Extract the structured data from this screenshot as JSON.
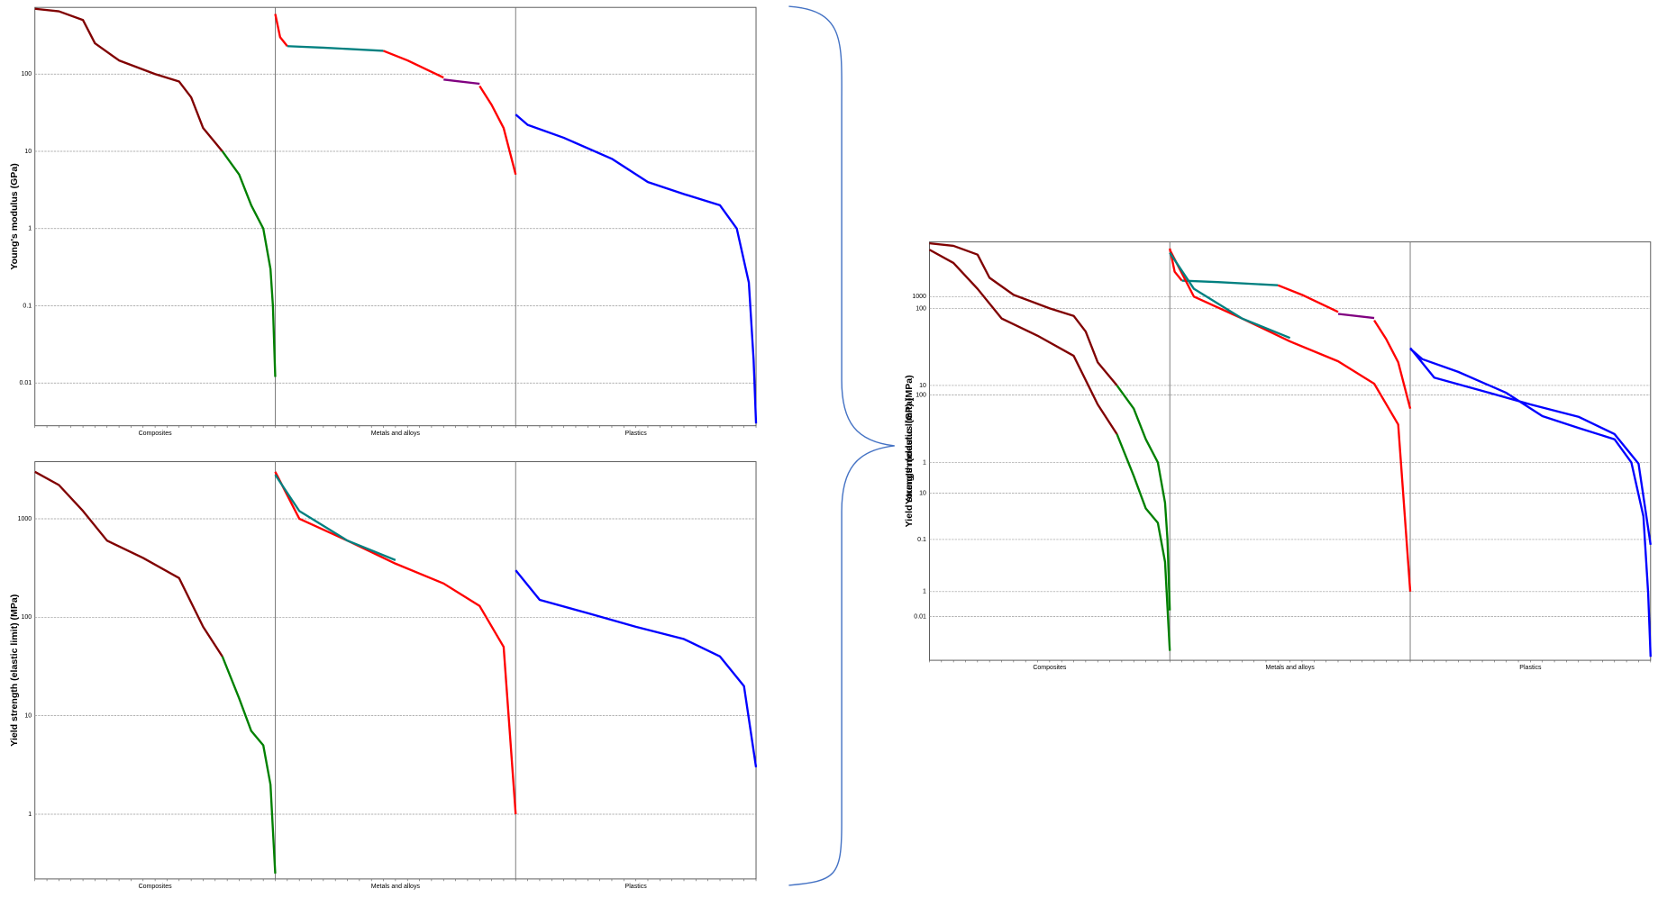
{
  "chart_data": [
    {
      "type": "line",
      "log_y": true,
      "grid": true,
      "y_label": "Young's modulus (GPa)",
      "categories": [
        "Composites",
        "Metals and alloys",
        "Plastics"
      ],
      "xlim": [
        0,
        3
      ],
      "ylim": [
        0.0028,
        730
      ],
      "yticks": [
        0.01,
        0.1,
        1,
        10,
        100
      ],
      "series": [
        {
          "color": "#800000",
          "x": [
            0,
            0.1,
            0.2,
            0.25,
            0.35,
            0.5,
            0.6,
            0.65,
            0.7,
            0.78
          ],
          "values": [
            700,
            650,
            500,
            250,
            150,
            100,
            80,
            50,
            20,
            10
          ]
        },
        {
          "color": "#008000",
          "x": [
            0.78,
            0.85,
            0.9,
            0.95,
            0.98,
            0.99,
            1.0
          ],
          "values": [
            10,
            5,
            2,
            1,
            0.3,
            0.1,
            0.012
          ]
        },
        {
          "color": "#ff0000",
          "x": [
            1.0,
            1.02,
            1.05
          ],
          "values": [
            600,
            300,
            230
          ]
        },
        {
          "color": "#008080",
          "x": [
            1.05,
            1.2,
            1.45
          ],
          "values": [
            230,
            220,
            200
          ]
        },
        {
          "color": "#ff0000",
          "x": [
            1.45,
            1.55,
            1.7
          ],
          "values": [
            200,
            150,
            90
          ]
        },
        {
          "color": "#800080",
          "x": [
            1.7,
            1.85
          ],
          "values": [
            85,
            75
          ]
        },
        {
          "color": "#ff0000",
          "x": [
            1.85,
            1.9,
            1.95,
            2.0
          ],
          "values": [
            70,
            40,
            20,
            5
          ]
        },
        {
          "color": "#0000ff",
          "x": [
            2.0,
            2.05,
            2.2,
            2.4,
            2.55,
            2.7,
            2.85,
            2.92,
            2.97,
            2.99,
            3.0
          ],
          "values": [
            30,
            22,
            15,
            8,
            4,
            2.8,
            2,
            1,
            0.2,
            0.02,
            0.003
          ]
        }
      ]
    },
    {
      "type": "line",
      "log_y": true,
      "grid": true,
      "y_label": "Yield strength (elastic limit) (MPa)",
      "categories": [
        "Composites",
        "Metals and alloys",
        "Plastics"
      ],
      "xlim": [
        0,
        3
      ],
      "ylim": [
        0.22,
        3800
      ],
      "yticks": [
        1,
        10,
        100,
        1000
      ],
      "series": [
        {
          "color": "#800000",
          "x": [
            0,
            0.1,
            0.2,
            0.3,
            0.45,
            0.6,
            0.7,
            0.78
          ],
          "values": [
            3000,
            2200,
            1200,
            600,
            400,
            250,
            80,
            40
          ]
        },
        {
          "color": "#008000",
          "x": [
            0.78,
            0.85,
            0.9,
            0.95,
            0.98,
            1.0
          ],
          "values": [
            40,
            15,
            7,
            5,
            2,
            0.25
          ]
        },
        {
          "color": "#ff0000",
          "x": [
            1.0,
            1.1,
            1.3,
            1.5,
            1.7,
            1.85,
            1.95,
            2.0
          ],
          "values": [
            3000,
            1000,
            600,
            350,
            220,
            130,
            50,
            1
          ]
        },
        {
          "color": "#008080",
          "x": [
            1.0,
            1.1,
            1.3,
            1.5
          ],
          "values": [
            2800,
            1200,
            600,
            380
          ]
        },
        {
          "color": "#0000ff",
          "x": [
            2.0,
            2.1,
            2.3,
            2.5,
            2.7,
            2.85,
            2.95,
            3.0
          ],
          "values": [
            300,
            150,
            110,
            80,
            60,
            40,
            20,
            3
          ]
        }
      ]
    },
    {
      "type": "line",
      "log_y": true,
      "grid": true,
      "y_label": "Young's modulus (GPa)",
      "y2_label": "Yield strength (elastic limit) (MPa)",
      "categories": [
        "Composites",
        "Metals and alloys",
        "Plastics"
      ],
      "xlim": [
        0,
        3
      ],
      "ylim": [
        0.0027,
        730
      ],
      "yticks": [
        0.01,
        0.1,
        1,
        10,
        100
      ],
      "y2lim": [
        0.2,
        3600
      ],
      "y2ticks": [
        1,
        10,
        100,
        1000
      ],
      "series": [
        {
          "color": "#800000",
          "x": [
            0,
            0.1,
            0.2,
            0.25,
            0.35,
            0.5,
            0.6,
            0.65,
            0.7,
            0.78
          ],
          "values": [
            700,
            650,
            500,
            250,
            150,
            100,
            80,
            50,
            20,
            10
          ]
        },
        {
          "color": "#008000",
          "x": [
            0.78,
            0.85,
            0.9,
            0.95,
            0.98,
            0.99,
            1.0
          ],
          "values": [
            10,
            5,
            2,
            1,
            0.3,
            0.1,
            0.012
          ]
        },
        {
          "color": "#ff0000",
          "x": [
            1.0,
            1.02,
            1.05
          ],
          "values": [
            600,
            300,
            230
          ]
        },
        {
          "color": "#008080",
          "x": [
            1.05,
            1.2,
            1.45
          ],
          "values": [
            230,
            220,
            200
          ]
        },
        {
          "color": "#ff0000",
          "x": [
            1.45,
            1.55,
            1.7
          ],
          "values": [
            200,
            150,
            90
          ]
        },
        {
          "color": "#800080",
          "x": [
            1.7,
            1.85
          ],
          "values": [
            85,
            75
          ]
        },
        {
          "color": "#ff0000",
          "x": [
            1.85,
            1.9,
            1.95,
            2.0
          ],
          "values": [
            70,
            40,
            20,
            5
          ]
        },
        {
          "color": "#0000ff",
          "x": [
            2.0,
            2.05,
            2.2,
            2.4,
            2.55,
            2.7,
            2.85,
            2.92,
            2.97,
            2.99,
            3.0
          ],
          "values": [
            30,
            22,
            15,
            8,
            4,
            2.8,
            2,
            1,
            0.2,
            0.02,
            0.003
          ]
        },
        {
          "color": "#800000",
          "axis": "y2",
          "x": [
            0,
            0.1,
            0.2,
            0.3,
            0.45,
            0.6,
            0.7,
            0.78
          ],
          "values": [
            3000,
            2200,
            1200,
            600,
            400,
            250,
            80,
            40
          ]
        },
        {
          "color": "#008000",
          "axis": "y2",
          "x": [
            0.78,
            0.85,
            0.9,
            0.95,
            0.98,
            1.0
          ],
          "values": [
            40,
            15,
            7,
            5,
            2,
            0.25
          ]
        },
        {
          "color": "#ff0000",
          "axis": "y2",
          "x": [
            1.0,
            1.1,
            1.3,
            1.5,
            1.7,
            1.85,
            1.95,
            2.0
          ],
          "values": [
            3000,
            1000,
            600,
            350,
            220,
            130,
            50,
            1
          ]
        },
        {
          "color": "#008080",
          "axis": "y2",
          "x": [
            1.0,
            1.1,
            1.3,
            1.5
          ],
          "values": [
            2800,
            1200,
            600,
            380
          ]
        },
        {
          "color": "#0000ff",
          "axis": "y2",
          "x": [
            2.0,
            2.1,
            2.3,
            2.5,
            2.7,
            2.85,
            2.95,
            3.0
          ],
          "values": [
            300,
            150,
            110,
            80,
            60,
            40,
            20,
            3
          ]
        }
      ]
    }
  ]
}
